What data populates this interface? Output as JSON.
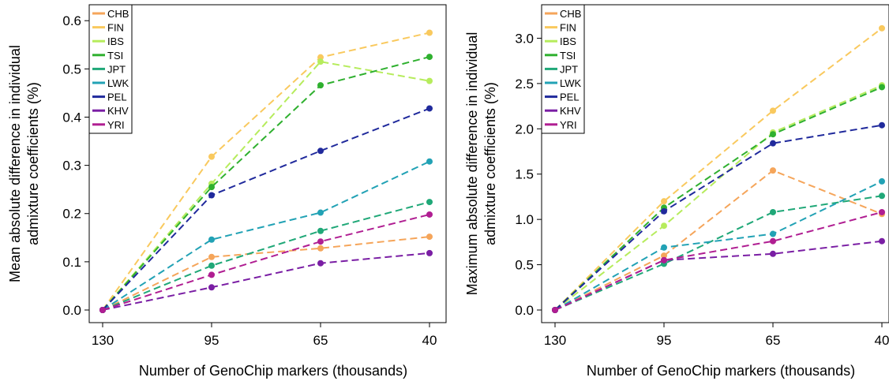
{
  "chart_data": [
    {
      "type": "line",
      "title": "",
      "xlabel": "Number of GenoChip markers (thousands)",
      "ylabel": [
        "Mean absolute difference in individual",
        "admixture coefficients (%)"
      ],
      "categories": [
        "130",
        "95",
        "65",
        "40"
      ],
      "ylim": [
        0,
        0.62
      ],
      "yticks": [
        "0.0",
        "0.1",
        "0.2",
        "0.3",
        "0.4",
        "0.5",
        "0.6"
      ],
      "legend_position": "top-left",
      "series": [
        {
          "name": "CHB",
          "color": "#f5a55a",
          "values": [
            0,
            0.11,
            0.128,
            0.152
          ]
        },
        {
          "name": "FIN",
          "color": "#f9c95e",
          "values": [
            0,
            0.318,
            0.524,
            0.575
          ]
        },
        {
          "name": "IBS",
          "color": "#b6ec5c",
          "values": [
            0,
            0.262,
            0.515,
            0.475
          ]
        },
        {
          "name": "TSI",
          "color": "#2fb02f",
          "values": [
            0,
            0.255,
            0.466,
            0.525
          ]
        },
        {
          "name": "JPT",
          "color": "#20a878",
          "values": [
            0,
            0.092,
            0.164,
            0.224
          ]
        },
        {
          "name": "LWK",
          "color": "#22a2b5",
          "values": [
            0,
            0.146,
            0.202,
            0.308
          ]
        },
        {
          "name": "PEL",
          "color": "#202a9c",
          "values": [
            0,
            0.238,
            0.33,
            0.418
          ]
        },
        {
          "name": "KHV",
          "color": "#7a1ea4",
          "values": [
            0,
            0.047,
            0.097,
            0.118
          ]
        },
        {
          "name": "YRI",
          "color": "#b01e92",
          "values": [
            0,
            0.073,
            0.142,
            0.198
          ]
        }
      ]
    },
    {
      "type": "line",
      "title": "",
      "xlabel": "Number of GenoChip markers (thousands)",
      "ylabel": [
        "Maximum absolute difference in individual",
        "admixture coefficients (%)"
      ],
      "categories": [
        "130",
        "95",
        "65",
        "40"
      ],
      "ylim": [
        0,
        3.3
      ],
      "yticks": [
        "0.0",
        "0.5",
        "1.0",
        "1.5",
        "2.0",
        "2.5",
        "3.0"
      ],
      "legend_position": "top-left",
      "series": [
        {
          "name": "CHB",
          "color": "#f5a55a",
          "values": [
            0,
            0.6,
            1.54,
            1.06
          ]
        },
        {
          "name": "FIN",
          "color": "#f9c95e",
          "values": [
            0,
            1.2,
            2.2,
            3.11
          ]
        },
        {
          "name": "IBS",
          "color": "#b6ec5c",
          "values": [
            0,
            0.93,
            1.96,
            2.48
          ]
        },
        {
          "name": "TSI",
          "color": "#2fb02f",
          "values": [
            0,
            1.13,
            1.94,
            2.46
          ]
        },
        {
          "name": "JPT",
          "color": "#20a878",
          "values": [
            0,
            0.51,
            1.08,
            1.26
          ]
        },
        {
          "name": "LWK",
          "color": "#22a2b5",
          "values": [
            0,
            0.69,
            0.84,
            1.42
          ]
        },
        {
          "name": "PEL",
          "color": "#202a9c",
          "values": [
            0,
            1.09,
            1.84,
            2.04
          ]
        },
        {
          "name": "KHV",
          "color": "#7a1ea4",
          "values": [
            0,
            0.55,
            0.62,
            0.76
          ]
        },
        {
          "name": "YRI",
          "color": "#b01e92",
          "values": [
            0,
            0.55,
            0.76,
            1.08
          ]
        }
      ]
    }
  ]
}
